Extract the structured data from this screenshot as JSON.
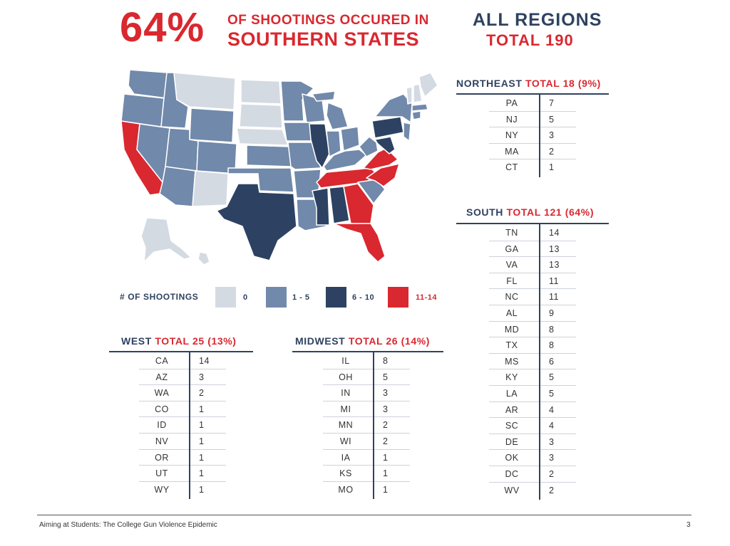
{
  "headline": {
    "percent": "64%",
    "line1": "OF SHOOTINGS OCCURED IN",
    "line2": "SOUTHERN STATES"
  },
  "summary": {
    "all_regions": "ALL REGIONS",
    "total": "TOTAL 190"
  },
  "legend": {
    "title": "# OF SHOOTINGS",
    "items": [
      {
        "label": "0",
        "color": "#d4dae2"
      },
      {
        "label": "1 - 5",
        "color": "#7189aa"
      },
      {
        "label": "6 - 10",
        "color": "#2d4262"
      },
      {
        "label": "11-14",
        "color": "#d9282f"
      }
    ]
  },
  "tables": {
    "northeast": {
      "region": "NORTHEAST",
      "total": "TOTAL 18 (9%)",
      "rows": [
        [
          "PA",
          "7"
        ],
        [
          "NJ",
          "5"
        ],
        [
          "NY",
          "3"
        ],
        [
          "MA",
          "2"
        ],
        [
          "CT",
          "1"
        ]
      ]
    },
    "south": {
      "region": "SOUTH",
      "total": "TOTAL 121 (64%)",
      "rows": [
        [
          "TN",
          "14"
        ],
        [
          "GA",
          "13"
        ],
        [
          "VA",
          "13"
        ],
        [
          "FL",
          "11"
        ],
        [
          "NC",
          "11"
        ],
        [
          "AL",
          "9"
        ],
        [
          "MD",
          "8"
        ],
        [
          "TX",
          "8"
        ],
        [
          "MS",
          "6"
        ],
        [
          "KY",
          "5"
        ],
        [
          "LA",
          "5"
        ],
        [
          "AR",
          "4"
        ],
        [
          "SC",
          "4"
        ],
        [
          "DE",
          "3"
        ],
        [
          "OK",
          "3"
        ],
        [
          "DC",
          "2"
        ],
        [
          "WV",
          "2"
        ]
      ]
    },
    "west": {
      "region": "WEST",
      "total": "TOTAL 25 (13%)",
      "rows": [
        [
          "CA",
          "14"
        ],
        [
          "AZ",
          "3"
        ],
        [
          "WA",
          "2"
        ],
        [
          "CO",
          "1"
        ],
        [
          "ID",
          "1"
        ],
        [
          "NV",
          "1"
        ],
        [
          "OR",
          "1"
        ],
        [
          "UT",
          "1"
        ],
        [
          "WY",
          "1"
        ]
      ]
    },
    "midwest": {
      "region": "MIDWEST",
      "total": "TOTAL 26 (14%)",
      "rows": [
        [
          "IL",
          "8"
        ],
        [
          "OH",
          "5"
        ],
        [
          "IN",
          "3"
        ],
        [
          "MI",
          "3"
        ],
        [
          "MN",
          "2"
        ],
        [
          "WI",
          "2"
        ],
        [
          "IA",
          "1"
        ],
        [
          "KS",
          "1"
        ],
        [
          "MO",
          "1"
        ]
      ]
    }
  },
  "footer": {
    "text": "Aiming at Students: The College Gun Violence Epidemic",
    "page": "3"
  }
}
